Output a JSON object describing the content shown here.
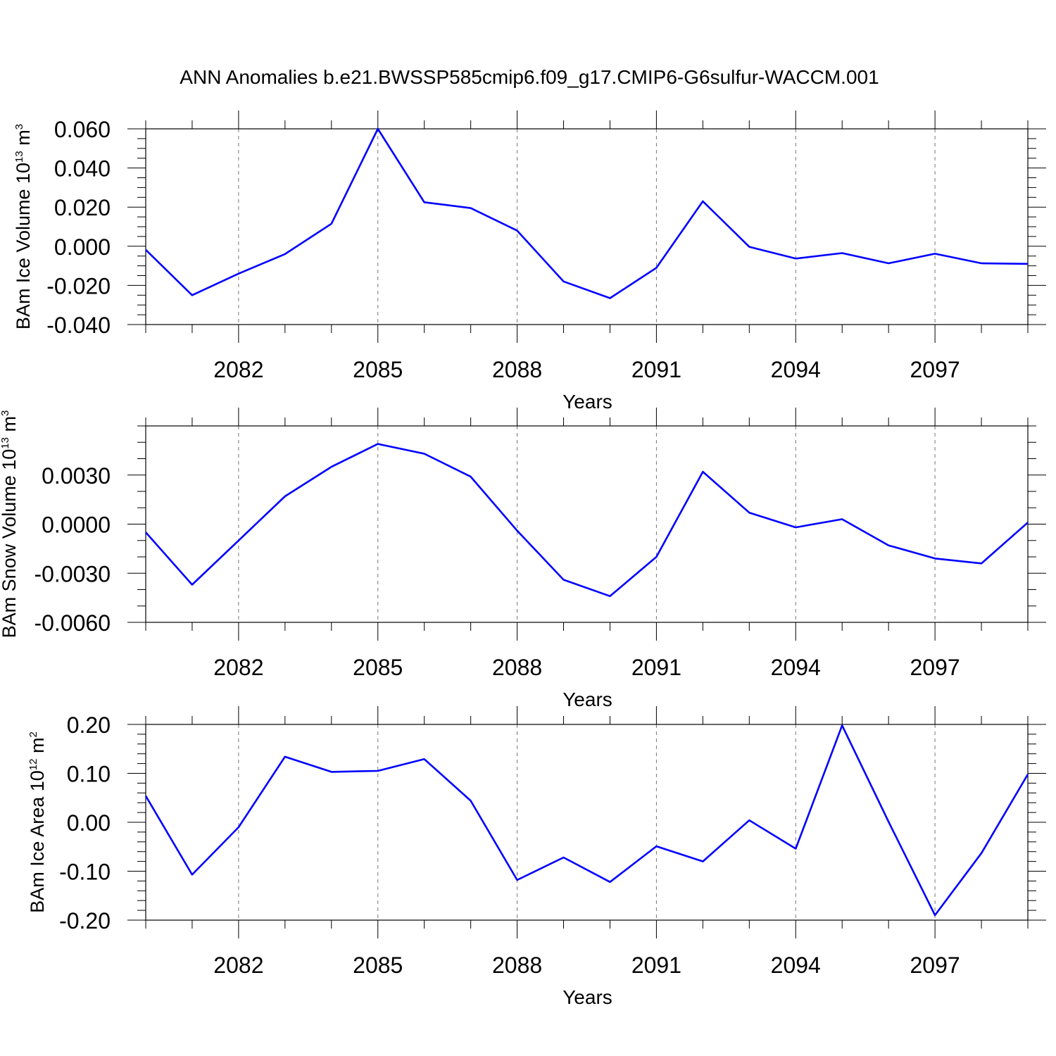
{
  "figure": {
    "title": "ANN Anomalies b.e21.BWSSP585cmip6.f09_g17.CMIP6-G6sulfur-WACCM.001"
  },
  "chart_data": [
    {
      "type": "line",
      "xlabel": "Years",
      "ylabel": {
        "base": "BAm Ice Volume 10",
        "exponent": "13",
        "unit": " m",
        "unit_exponent": "3"
      },
      "xlim": [
        2080,
        2099
      ],
      "ylim": [
        -0.04,
        0.06
      ],
      "x_ticks": [
        2082,
        2085,
        2088,
        2091,
        2094,
        2097
      ],
      "x_tick_labels": [
        "2082",
        "2085",
        "2088",
        "2091",
        "2094",
        "2097"
      ],
      "y_ticks": [
        -0.04,
        -0.02,
        0.0,
        0.02,
        0.04,
        0.06
      ],
      "y_tick_labels": [
        "-0.040",
        "-0.020",
        "0.000",
        "0.020",
        "0.040",
        "0.060"
      ],
      "y_minor_step": 0.005,
      "grid": "dashed vertical lines at major x ticks",
      "series": [
        {
          "color": "#0000ff",
          "x": [
            2080,
            2081,
            2082,
            2083,
            2084,
            2085,
            2086,
            2087,
            2088,
            2089,
            2090,
            2091,
            2092,
            2093,
            2094,
            2095,
            2096,
            2097,
            2098,
            2099
          ],
          "values": [
            -0.0018,
            -0.025,
            -0.014,
            -0.004,
            0.0115,
            0.06,
            0.0225,
            0.0195,
            0.008,
            -0.018,
            -0.0265,
            -0.011,
            0.023,
            -0.0003,
            -0.0063,
            -0.0035,
            -0.0087,
            -0.0038,
            -0.0087,
            -0.009
          ]
        }
      ]
    },
    {
      "type": "line",
      "xlabel": "Years",
      "ylabel": {
        "base": "BAm Snow Volume 10",
        "exponent": "13",
        "unit": " m",
        "unit_exponent": "3"
      },
      "xlim": [
        2080,
        2099
      ],
      "ylim": [
        -0.006,
        0.006
      ],
      "x_ticks": [
        2082,
        2085,
        2088,
        2091,
        2094,
        2097
      ],
      "x_tick_labels": [
        "2082",
        "2085",
        "2088",
        "2091",
        "2094",
        "2097"
      ],
      "y_ticks": [
        -0.006,
        -0.003,
        0.0,
        0.003
      ],
      "y_tick_labels": [
        "-0.0060",
        "-0.0030",
        "0.0000",
        "0.0030"
      ],
      "y_minor_step": 0.001,
      "grid": "dashed vertical lines at major x ticks",
      "series": [
        {
          "color": "#0000ff",
          "x": [
            2080,
            2081,
            2082,
            2083,
            2084,
            2085,
            2086,
            2087,
            2088,
            2089,
            2090,
            2091,
            2092,
            2093,
            2094,
            2095,
            2096,
            2097,
            2098,
            2099
          ],
          "values": [
            -0.0005,
            -0.0037,
            -0.001,
            0.0017,
            0.0035,
            0.0049,
            0.0043,
            0.0029,
            -0.0004,
            -0.0034,
            -0.0044,
            -0.002,
            0.0032,
            0.0007,
            -0.0002,
            0.0003,
            -0.0013,
            -0.0021,
            -0.0024,
            0.0001
          ]
        }
      ]
    },
    {
      "type": "line",
      "xlabel": "Years",
      "ylabel": {
        "base": "BAm Ice Area 10",
        "exponent": "12",
        "unit": " m",
        "unit_exponent": "2"
      },
      "xlim": [
        2080,
        2099
      ],
      "ylim": [
        -0.2,
        0.2
      ],
      "x_ticks": [
        2082,
        2085,
        2088,
        2091,
        2094,
        2097
      ],
      "x_tick_labels": [
        "2082",
        "2085",
        "2088",
        "2091",
        "2094",
        "2097"
      ],
      "y_ticks": [
        -0.2,
        -0.1,
        0.0,
        0.1,
        0.2
      ],
      "y_tick_labels": [
        "-0.20",
        "-0.10",
        "0.00",
        "0.10",
        "0.20"
      ],
      "y_minor_step": 0.02,
      "grid": "dashed vertical lines at major x ticks",
      "series": [
        {
          "color": "#0000ff",
          "x": [
            2080,
            2081,
            2082,
            2083,
            2084,
            2085,
            2086,
            2087,
            2088,
            2089,
            2090,
            2091,
            2092,
            2093,
            2094,
            2095,
            2096,
            2097,
            2098,
            2099
          ],
          "values": [
            0.054,
            -0.107,
            -0.01,
            0.134,
            0.103,
            0.105,
            0.129,
            0.044,
            -0.118,
            -0.072,
            -0.122,
            -0.049,
            -0.08,
            0.004,
            -0.054,
            0.198,
            0.001,
            -0.19,
            -0.063,
            0.098
          ]
        }
      ]
    }
  ]
}
